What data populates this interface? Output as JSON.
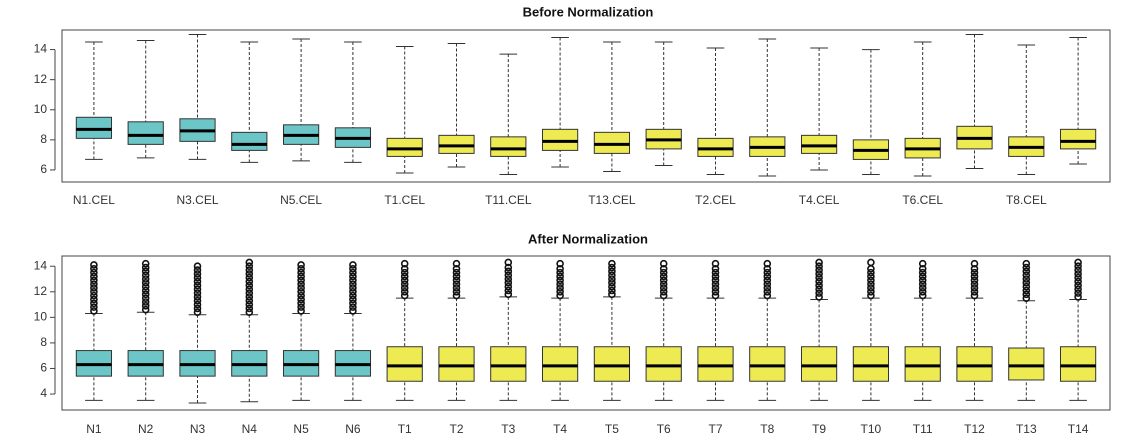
{
  "chart_data": [
    {
      "type": "box",
      "title": "Before Normalization",
      "categories": [
        "N1.CEL",
        null,
        "N3.CEL",
        null,
        "N5.CEL",
        null,
        "T1.CEL",
        null,
        "T11.CEL",
        null,
        "T13.CEL",
        null,
        "T2.CEL",
        null,
        "T4.CEL",
        null,
        "T6.CEL",
        null,
        "T8.CEL",
        null
      ],
      "colors": [
        "#6cc5c6",
        "#6cc5c6",
        "#6cc5c6",
        "#6cc5c6",
        "#6cc5c6",
        "#6cc5c6",
        "#eeea52",
        "#eeea52",
        "#eeea52",
        "#eeea52",
        "#eeea52",
        "#eeea52",
        "#eeea52",
        "#eeea52",
        "#eeea52",
        "#eeea52",
        "#eeea52",
        "#eeea52",
        "#eeea52",
        "#eeea52"
      ],
      "whisker_low": [
        6.7,
        6.8,
        6.7,
        6.5,
        6.6,
        6.5,
        5.8,
        6.2,
        5.7,
        6.2,
        5.9,
        6.3,
        5.7,
        5.6,
        6.0,
        5.7,
        5.6,
        6.1,
        5.7,
        6.4
      ],
      "q1": [
        8.1,
        7.7,
        7.9,
        7.3,
        7.7,
        7.5,
        6.9,
        7.1,
        6.9,
        7.3,
        7.1,
        7.4,
        6.9,
        6.9,
        7.1,
        6.7,
        6.8,
        7.4,
        6.9,
        7.4
      ],
      "median": [
        8.7,
        8.3,
        8.6,
        7.7,
        8.3,
        8.1,
        7.4,
        7.6,
        7.4,
        7.9,
        7.7,
        8.0,
        7.4,
        7.5,
        7.6,
        7.3,
        7.4,
        8.1,
        7.5,
        7.9
      ],
      "q3": [
        9.5,
        9.2,
        9.4,
        8.5,
        9.0,
        8.8,
        8.1,
        8.3,
        8.2,
        8.7,
        8.5,
        8.7,
        8.1,
        8.2,
        8.3,
        8.0,
        8.1,
        8.9,
        8.2,
        8.7
      ],
      "whisker_high": [
        14.5,
        14.6,
        15.0,
        14.5,
        14.7,
        14.5,
        14.2,
        14.4,
        13.7,
        14.8,
        14.5,
        14.5,
        14.1,
        14.7,
        14.1,
        14.0,
        14.5,
        15.0,
        14.3,
        14.8
      ],
      "ylim": [
        5.2,
        15.3
      ],
      "yticks": [
        6,
        8,
        10,
        12,
        14
      ]
    },
    {
      "type": "box",
      "title": "After Normalization",
      "categories": [
        "N1",
        "N2",
        "N3",
        "N4",
        "N5",
        "N6",
        "T1",
        "T2",
        "T3",
        "T4",
        "T5",
        "T6",
        "T7",
        "T8",
        "T9",
        "T10",
        "T11",
        "T12",
        "T13",
        "T14"
      ],
      "colors": [
        "#6cc5c6",
        "#6cc5c6",
        "#6cc5c6",
        "#6cc5c6",
        "#6cc5c6",
        "#6cc5c6",
        "#eeea52",
        "#eeea52",
        "#eeea52",
        "#eeea52",
        "#eeea52",
        "#eeea52",
        "#eeea52",
        "#eeea52",
        "#eeea52",
        "#eeea52",
        "#eeea52",
        "#eeea52",
        "#eeea52",
        "#eeea52"
      ],
      "whisker_low": [
        3.5,
        3.5,
        3.3,
        3.4,
        3.5,
        3.5,
        3.5,
        3.5,
        3.5,
        3.5,
        3.5,
        3.5,
        3.5,
        3.5,
        3.5,
        3.5,
        3.5,
        3.5,
        3.5,
        3.5
      ],
      "q1": [
        5.4,
        5.4,
        5.4,
        5.4,
        5.4,
        5.4,
        5.0,
        5.0,
        5.0,
        5.0,
        5.0,
        5.0,
        5.0,
        5.0,
        5.0,
        5.0,
        5.0,
        5.0,
        5.1,
        5.0
      ],
      "median": [
        6.3,
        6.3,
        6.3,
        6.3,
        6.3,
        6.3,
        6.2,
        6.2,
        6.2,
        6.2,
        6.2,
        6.2,
        6.2,
        6.2,
        6.2,
        6.2,
        6.2,
        6.2,
        6.2,
        6.2
      ],
      "q3": [
        7.4,
        7.4,
        7.4,
        7.4,
        7.4,
        7.4,
        7.7,
        7.7,
        7.7,
        7.7,
        7.7,
        7.7,
        7.7,
        7.7,
        7.7,
        7.7,
        7.7,
        7.7,
        7.6,
        7.7
      ],
      "whisker_high": [
        10.3,
        10.4,
        10.2,
        10.2,
        10.3,
        10.3,
        11.5,
        11.5,
        11.6,
        11.5,
        11.6,
        11.5,
        11.5,
        11.5,
        11.4,
        11.5,
        11.5,
        11.5,
        11.3,
        11.4
      ],
      "outliers": [
        [
          10.5,
          10.8,
          11.1,
          11.4,
          11.7,
          12.0,
          12.3,
          12.6,
          12.9,
          13.2,
          13.5,
          13.8,
          14.1
        ],
        [
          10.6,
          10.9,
          11.2,
          11.5,
          11.8,
          12.1,
          12.4,
          12.7,
          13.0,
          13.3,
          13.6,
          13.9,
          14.2
        ],
        [
          10.4,
          10.7,
          11.0,
          11.3,
          11.6,
          11.9,
          12.2,
          12.5,
          12.8,
          13.1,
          13.4,
          13.7,
          14.0
        ],
        [
          10.4,
          10.7,
          11.0,
          11.3,
          11.6,
          11.9,
          12.2,
          12.5,
          12.8,
          13.1,
          13.4,
          13.7,
          14.0,
          14.3
        ],
        [
          10.5,
          10.8,
          11.1,
          11.4,
          11.7,
          12.0,
          12.3,
          12.6,
          12.9,
          13.2,
          13.5,
          13.8,
          14.1
        ],
        [
          10.5,
          10.8,
          11.1,
          11.4,
          11.7,
          12.0,
          12.3,
          12.6,
          12.9,
          13.2,
          13.5,
          13.8,
          14.1
        ],
        [
          11.7,
          12.0,
          12.3,
          12.6,
          12.9,
          13.2,
          13.5,
          13.8,
          14.2
        ],
        [
          11.7,
          12.0,
          12.3,
          12.6,
          12.9,
          13.2,
          13.5,
          13.8,
          14.2
        ],
        [
          11.8,
          12.1,
          12.4,
          12.7,
          13.0,
          13.3,
          13.6,
          13.9,
          14.3
        ],
        [
          11.7,
          12.0,
          12.3,
          12.6,
          12.9,
          13.2,
          13.5,
          13.8,
          14.2
        ],
        [
          11.8,
          12.1,
          12.4,
          12.7,
          13.0,
          13.3,
          13.6,
          13.9,
          14.2
        ],
        [
          11.7,
          12.0,
          12.3,
          12.6,
          12.9,
          13.2,
          13.5,
          13.8,
          14.2
        ],
        [
          11.7,
          12.0,
          12.3,
          12.6,
          12.9,
          13.2,
          13.5,
          13.8,
          14.2
        ],
        [
          11.7,
          12.0,
          12.3,
          12.6,
          12.9,
          13.2,
          13.5,
          13.8,
          14.2
        ],
        [
          11.6,
          11.9,
          12.2,
          12.5,
          12.8,
          13.1,
          13.4,
          13.7,
          14.0,
          14.3
        ],
        [
          11.7,
          12.0,
          12.3,
          12.6,
          12.9,
          13.2,
          13.5,
          13.8,
          14.3
        ],
        [
          11.7,
          12.0,
          12.3,
          12.6,
          12.9,
          13.2,
          13.5,
          13.8,
          14.2
        ],
        [
          11.7,
          12.0,
          12.3,
          12.6,
          12.9,
          13.2,
          13.5,
          13.8,
          14.2
        ],
        [
          11.5,
          11.8,
          12.1,
          12.4,
          12.7,
          13.0,
          13.3,
          13.6,
          13.9,
          14.2
        ],
        [
          11.6,
          11.9,
          12.2,
          12.5,
          12.8,
          13.1,
          13.4,
          13.7,
          14.0,
          14.3
        ]
      ],
      "ylim": [
        2.75,
        14.8
      ],
      "yticks": [
        4,
        6,
        8,
        10,
        12,
        14
      ]
    }
  ]
}
